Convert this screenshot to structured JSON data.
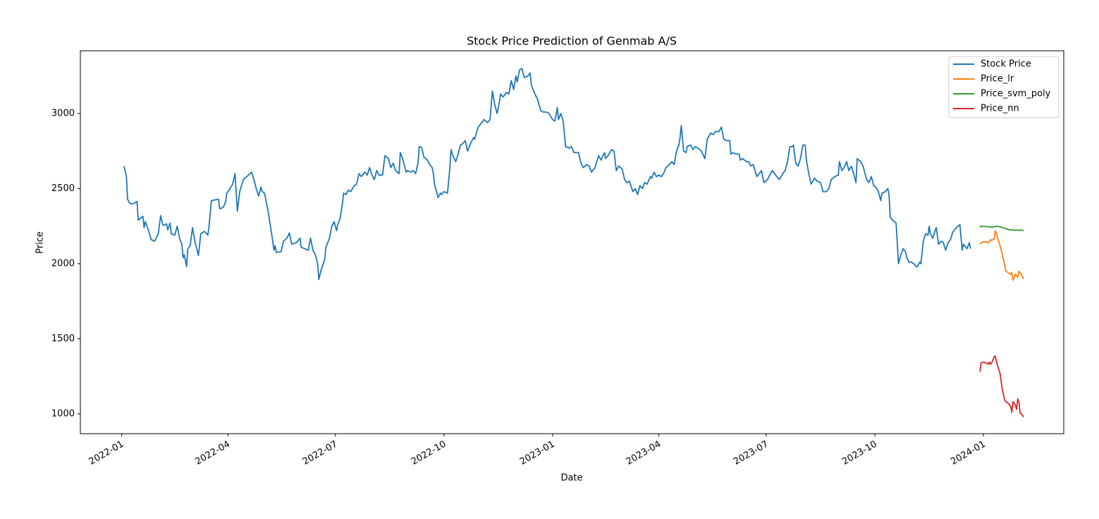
{
  "chart_data": {
    "type": "line",
    "title": "Stock Price Prediction of Genmab A/S",
    "xlabel": "Date",
    "ylabel": "Price",
    "xlim": [
      -35,
      798
    ],
    "ylim": [
      868,
      3418
    ],
    "xticks": [
      {
        "value": 0,
        "label": "2022-01"
      },
      {
        "value": 90,
        "label": "2022-04"
      },
      {
        "value": 181,
        "label": "2022-07"
      },
      {
        "value": 273,
        "label": "2022-10"
      },
      {
        "value": 365,
        "label": "2023-01"
      },
      {
        "value": 455,
        "label": "2023-04"
      },
      {
        "value": 546,
        "label": "2023-07"
      },
      {
        "value": 638,
        "label": "2023-10"
      },
      {
        "value": 730,
        "label": "2024-01"
      }
    ],
    "yticks": [
      1000,
      1500,
      2000,
      2500,
      3000
    ],
    "legend": "upper right",
    "grid": false,
    "series": [
      {
        "name": "Stock Price",
        "color": "#1f77b4",
        "x": [
          2,
          4,
          5,
          7,
          10,
          13,
          14,
          18,
          19,
          20,
          23,
          25,
          28,
          31,
          33,
          35,
          38,
          39,
          41,
          42,
          45,
          47,
          49,
          51,
          52,
          53,
          55,
          56,
          58,
          60,
          62,
          65,
          67,
          70,
          73,
          74,
          76,
          79,
          82,
          83,
          86,
          88,
          89,
          91,
          94,
          96,
          98,
          100,
          103,
          106,
          110,
          112,
          114,
          116,
          118,
          119,
          121,
          124,
          127,
          129,
          130,
          131,
          135,
          137,
          140,
          142,
          144,
          148,
          151,
          152,
          155,
          158,
          160,
          162,
          164,
          166,
          167,
          169,
          172,
          173,
          176,
          178,
          180,
          182,
          183,
          185,
          187,
          188,
          190,
          192,
          194,
          197,
          199,
          201,
          203,
          206,
          208,
          210,
          212,
          214,
          216,
          218,
          221,
          223,
          226,
          228,
          230,
          232,
          235,
          236,
          238,
          241,
          242,
          245,
          247,
          249,
          251,
          252,
          254,
          256,
          259,
          261,
          263,
          264,
          265,
          267,
          268,
          270,
          271,
          273,
          276,
          278,
          279,
          281,
          283,
          285,
          287,
          289,
          291,
          293,
          295,
          298,
          299,
          302,
          304,
          307,
          310,
          312,
          314,
          316,
          318,
          320,
          321,
          323,
          326,
          328,
          330,
          332,
          334,
          335,
          337,
          339,
          341,
          344,
          346,
          347,
          350,
          352,
          355,
          357,
          360,
          362,
          365,
          367,
          369,
          370,
          372,
          374,
          376,
          379,
          381,
          383,
          387,
          389,
          391,
          394,
          396,
          398,
          401,
          404,
          406,
          409,
          410,
          412,
          415,
          417,
          419,
          421,
          424,
          426,
          428,
          430,
          433,
          435,
          437,
          439,
          441,
          443,
          445,
          448,
          449,
          451,
          453,
          455,
          457,
          459,
          461,
          464,
          466,
          468,
          470,
          472,
          473,
          474,
          476,
          478,
          479,
          482,
          484,
          486,
          488,
          491,
          494,
          496,
          499,
          501,
          503,
          506,
          508,
          510,
          512,
          515,
          516,
          518,
          520,
          523,
          524,
          526,
          529,
          531,
          533,
          535,
          538,
          540,
          542,
          544,
          547,
          549,
          551,
          554,
          556,
          557,
          560,
          562,
          564,
          566,
          568,
          569,
          571,
          573,
          575,
          577,
          579,
          580,
          582,
          584,
          587,
          589,
          592,
          594,
          597,
          599,
          601,
          604,
          607,
          608,
          610,
          612,
          614,
          616,
          618,
          620,
          622,
          623,
          626,
          628,
          631,
          633,
          635,
          637,
          639,
          641,
          643,
          644,
          647,
          649,
          650,
          651,
          653,
          656,
          658,
          660,
          662,
          664,
          665,
          667,
          669,
          671,
          673,
          674,
          676,
          677,
          679,
          681,
          683,
          684,
          685,
          687,
          689,
          690,
          692,
          694,
          696,
          698,
          700,
          702,
          704,
          707,
          710,
          712,
          713,
          716,
          718,
          719
        ],
        "values": [
          2650,
          2580,
          2430,
          2400,
          2400,
          2415,
          2290,
          2315,
          2240,
          2280,
          2215,
          2160,
          2150,
          2200,
          2320,
          2255,
          2265,
          2225,
          2270,
          2200,
          2190,
          2250,
          2170,
          2130,
          2040,
          2060,
          1980,
          2100,
          2120,
          2240,
          2150,
          2055,
          2200,
          2215,
          2190,
          2250,
          2420,
          2425,
          2430,
          2365,
          2375,
          2410,
          2470,
          2490,
          2530,
          2600,
          2350,
          2480,
          2560,
          2580,
          2610,
          2560,
          2500,
          2450,
          2510,
          2480,
          2470,
          2350,
          2200,
          2090,
          2120,
          2075,
          2080,
          2150,
          2170,
          2205,
          2130,
          2140,
          2170,
          2110,
          2100,
          2090,
          2170,
          2090,
          2060,
          2000,
          1895,
          1960,
          2030,
          2110,
          2170,
          2250,
          2280,
          2220,
          2260,
          2300,
          2400,
          2470,
          2460,
          2490,
          2480,
          2520,
          2530,
          2600,
          2580,
          2610,
          2590,
          2640,
          2590,
          2560,
          2620,
          2590,
          2590,
          2720,
          2700,
          2640,
          2670,
          2620,
          2600,
          2740,
          2700,
          2610,
          2620,
          2610,
          2620,
          2600,
          2670,
          2780,
          2775,
          2710,
          2690,
          2660,
          2640,
          2600,
          2530,
          2470,
          2440,
          2470,
          2460,
          2480,
          2470,
          2640,
          2760,
          2710,
          2680,
          2730,
          2790,
          2800,
          2820,
          2750,
          2790,
          2840,
          2830,
          2910,
          2930,
          2960,
          2940,
          2960,
          3150,
          3060,
          3000,
          3080,
          3130,
          3110,
          3140,
          3130,
          3220,
          3160,
          3250,
          3210,
          3290,
          3300,
          3240,
          3250,
          3270,
          3190,
          3130,
          3100,
          3020,
          3010,
          3010,
          3000,
          2960,
          2950,
          3040,
          2960,
          3000,
          2950,
          2780,
          2770,
          2780,
          2740,
          2740,
          2670,
          2640,
          2660,
          2650,
          2610,
          2640,
          2720,
          2690,
          2740,
          2700,
          2720,
          2760,
          2750,
          2620,
          2650,
          2630,
          2560,
          2540,
          2550,
          2480,
          2500,
          2460,
          2520,
          2500,
          2540,
          2530,
          2580,
          2570,
          2610,
          2580,
          2590,
          2580,
          2600,
          2640,
          2660,
          2680,
          2660,
          2750,
          2790,
          2840,
          2920,
          2750,
          2740,
          2780,
          2790,
          2760,
          2780,
          2770,
          2750,
          2700,
          2830,
          2870,
          2860,
          2880,
          2880,
          2910,
          2830,
          2820,
          2820,
          2730,
          2740,
          2730,
          2730,
          2690,
          2700,
          2680,
          2680,
          2650,
          2660,
          2580,
          2600,
          2620,
          2540,
          2560,
          2590,
          2620,
          2590,
          2570,
          2560,
          2600,
          2620,
          2680,
          2780,
          2780,
          2790,
          2670,
          2650,
          2700,
          2790,
          2790,
          2690,
          2600,
          2530,
          2570,
          2550,
          2540,
          2480,
          2480,
          2500,
          2560,
          2580,
          2590,
          2680,
          2620,
          2640,
          2680,
          2620,
          2650,
          2600,
          2540,
          2700,
          2680,
          2650,
          2560,
          2540,
          2580,
          2520,
          2510,
          2480,
          2420,
          2470,
          2480,
          2500,
          2460,
          2310,
          2290,
          2270,
          2000,
          2060,
          2100,
          2080,
          2040,
          2010,
          2010,
          2000,
          1980,
          1980,
          2010,
          2000,
          2150,
          2200,
          2190,
          2250,
          2200,
          2170,
          2220,
          2240,
          2130,
          2150,
          2140,
          2090,
          2140,
          2160,
          2210,
          2240,
          2260,
          2090,
          2130,
          2100,
          2140,
          2100
        ]
      },
      {
        "name": "Price_lr",
        "color": "#ff7f0e",
        "x": [
          727,
          728,
          730,
          732,
          734,
          735,
          736,
          737,
          739,
          740,
          741,
          742,
          744,
          746,
          748,
          749,
          751,
          753,
          754,
          755,
          757,
          758,
          759,
          760,
          761,
          764
        ],
        "values": [
          2130,
          2140,
          2145,
          2145,
          2140,
          2145,
          2160,
          2155,
          2165,
          2220,
          2200,
          2170,
          2120,
          2060,
          1990,
          1950,
          1940,
          1930,
          1940,
          1890,
          1930,
          1920,
          1910,
          1950,
          1940,
          1900
        ]
      },
      {
        "name": "Price_svm_poly",
        "color": "#2ca02c",
        "x": [
          727,
          728,
          730,
          732,
          734,
          735,
          736,
          737,
          739,
          740,
          741,
          742,
          744,
          746,
          748,
          749,
          751,
          753,
          754,
          755,
          757,
          758,
          759,
          760,
          761,
          764
        ],
        "values": [
          2240,
          2250,
          2250,
          2248,
          2245,
          2245,
          2245,
          2242,
          2245,
          2250,
          2248,
          2248,
          2245,
          2240,
          2235,
          2232,
          2228,
          2225,
          2225,
          2225,
          2222,
          2225,
          2222,
          2222,
          2225,
          2220
        ]
      },
      {
        "name": "Price_nn",
        "color": "#d62728",
        "x": [
          727,
          728,
          730,
          732,
          734,
          735,
          736,
          737,
          739,
          740,
          741,
          742,
          744,
          746,
          748,
          749,
          751,
          753,
          754,
          755,
          757,
          758,
          759,
          760,
          761,
          764
        ],
        "values": [
          1280,
          1340,
          1345,
          1340,
          1330,
          1345,
          1330,
          1340,
          1380,
          1385,
          1350,
          1320,
          1270,
          1160,
          1090,
          1080,
          1070,
          1050,
          1010,
          1080,
          1060,
          1030,
          1100,
          1080,
          1010,
          980
        ]
      }
    ]
  }
}
